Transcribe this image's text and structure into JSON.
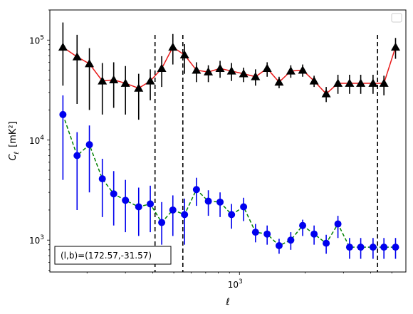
{
  "chart_data": {
    "type": "scatter",
    "xscale": "log",
    "yscale": "log",
    "xlabel": "ℓ",
    "ylabel_main": "C",
    "ylabel_sub": "ℓ",
    "ylabel_unit": "[mK²]",
    "xlim": [
      135,
      5800
    ],
    "ylim": [
      480,
      200000
    ],
    "x_ticks": [
      {
        "value": 1000,
        "base": "10",
        "exp": "3"
      }
    ],
    "y_ticks": [
      {
        "value": 1000,
        "base": "10",
        "exp": "3"
      },
      {
        "value": 10000,
        "base": "10",
        "exp": "4"
      },
      {
        "value": 100000,
        "base": "10",
        "exp": "5"
      }
    ],
    "vlines": [
      410,
      550,
      4300
    ],
    "annotation": "(l,b)=(172.57,-31.57)",
    "legend": {
      "placement": "top-right",
      "entries": []
    },
    "series": [
      {
        "marker": "triangle",
        "marker_color": "#000000",
        "line_color": "#e81818",
        "line_style": "solid",
        "errbar_color": "#000000",
        "x": [
          155,
          180,
          205,
          235,
          265,
          300,
          345,
          390,
          440,
          495,
          560,
          635,
          720,
          815,
          920,
          1045,
          1185,
          1340,
          1520,
          1720,
          1950,
          2200,
          2500,
          2830,
          3200,
          3600,
          4100,
          4600,
          5200
        ],
        "y": [
          85000,
          68000,
          58000,
          39000,
          40000,
          37000,
          33000,
          39000,
          52000,
          85000,
          71000,
          50000,
          48000,
          52000,
          49000,
          46000,
          43000,
          52000,
          38000,
          49000,
          50000,
          39000,
          29000,
          37000,
          37000,
          37000,
          37000,
          37000,
          85000
        ],
        "err_lo": [
          50000,
          45000,
          38000,
          21000,
          19000,
          19000,
          17000,
          14000,
          18000,
          28000,
          25000,
          12000,
          10000,
          10000,
          10000,
          8000,
          8000,
          9000,
          5000,
          7000,
          7000,
          5000,
          5000,
          8000,
          8000,
          8000,
          8000,
          9000,
          20000
        ],
        "err_hi": [
          65000,
          45000,
          25000,
          20000,
          20000,
          18000,
          13000,
          12000,
          17000,
          30000,
          20000,
          10000,
          8000,
          10000,
          10000,
          7000,
          8000,
          8000,
          5000,
          7000,
          7000,
          5000,
          5000,
          8000,
          8000,
          8000,
          8000,
          7000,
          20000
        ]
      },
      {
        "marker": "circle",
        "marker_color": "#0000ee",
        "line_color": "#008000",
        "line_style": "dashed",
        "errbar_color": "#0000ee",
        "x": [
          155,
          180,
          205,
          235,
          265,
          300,
          345,
          390,
          440,
          495,
          560,
          635,
          720,
          815,
          920,
          1045,
          1185,
          1340,
          1520,
          1720,
          1950,
          2200,
          2500,
          2830,
          3200,
          3600,
          4100,
          4600,
          5200
        ],
        "y": [
          18000,
          7000,
          9000,
          4100,
          2900,
          2500,
          2150,
          2300,
          1500,
          2000,
          1800,
          3200,
          2450,
          2400,
          1800,
          2150,
          1200,
          1150,
          880,
          1000,
          1400,
          1150,
          930,
          1450,
          850,
          850,
          850,
          850,
          850
        ],
        "err_lo": [
          14000,
          5000,
          6000,
          2400,
          1500,
          1300,
          1050,
          1100,
          600,
          900,
          900,
          1000,
          700,
          700,
          500,
          600,
          250,
          250,
          150,
          200,
          300,
          250,
          200,
          400,
          200,
          200,
          200,
          200,
          200
        ],
        "err_hi": [
          10000,
          5000,
          5000,
          2400,
          2000,
          1500,
          1200,
          1200,
          900,
          800,
          800,
          1000,
          700,
          600,
          500,
          500,
          250,
          250,
          150,
          200,
          200,
          250,
          200,
          300,
          200,
          200,
          200,
          200,
          200
        ]
      }
    ]
  }
}
